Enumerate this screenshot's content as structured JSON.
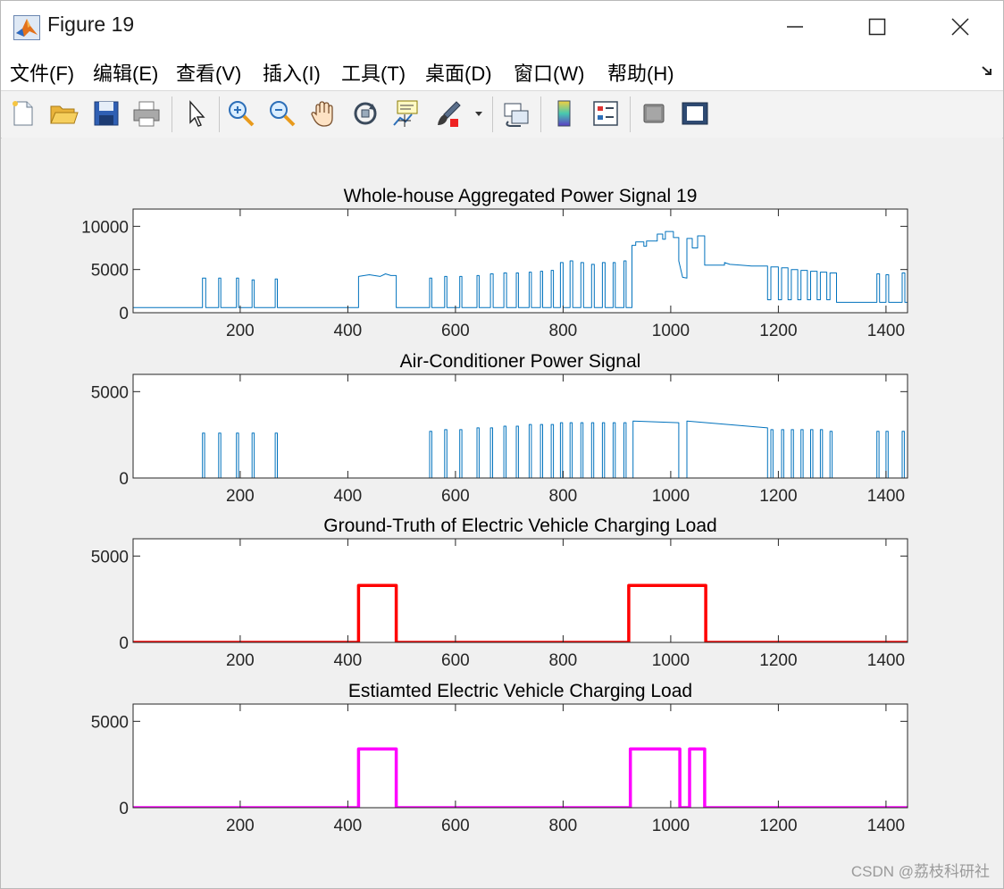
{
  "window": {
    "title": "Figure 19"
  },
  "menu": [
    {
      "label": "文件(F)",
      "x": 10
    },
    {
      "label": "编辑(E)",
      "x": 103
    },
    {
      "label": "查看(V)",
      "x": 196
    },
    {
      "label": "插入(I)",
      "x": 293
    },
    {
      "label": "工具(T)",
      "x": 381
    },
    {
      "label": "桌面(D)",
      "x": 475
    },
    {
      "label": "窗口(W)",
      "x": 574
    },
    {
      "label": "帮助(H)",
      "x": 679
    }
  ],
  "toolbar": {
    "tools": [
      "new-file-icon",
      "open-file-icon",
      "save-icon",
      "print-icon",
      "pointer-icon",
      "zoom-in-icon",
      "zoom-out-icon",
      "pan-hand-icon",
      "rotate-3d-icon",
      "data-cursor-icon",
      "brush-icon",
      "brush-dropdown-icon",
      "link-plot-icon",
      "colorbar-icon",
      "legend-icon",
      "hide-plot-tools-icon",
      "show-plot-tools-icon"
    ]
  },
  "watermark": "CSDN @荔枝科研社",
  "colors": {
    "blue": "#0072BD",
    "red": "#FF0000",
    "magenta": "#FF00FF"
  },
  "chart_data": [
    {
      "type": "line",
      "title": "Whole-house Aggregated Power Signal 19",
      "xlim": [
        1,
        1440
      ],
      "ylim": [
        0,
        12000
      ],
      "xticks": [
        200,
        400,
        600,
        800,
        1000,
        1200,
        1400
      ],
      "yticks": [
        0,
        5000,
        10000
      ],
      "color": "#0072BD",
      "linewidth": 1,
      "segments": [
        [
          1,
          600
        ],
        [
          130,
          600
        ],
        [
          130,
          4000
        ],
        [
          136,
          4000
        ],
        [
          136,
          600
        ],
        [
          160,
          600
        ],
        [
          160,
          4000
        ],
        [
          164,
          4000
        ],
        [
          164,
          600
        ],
        [
          193,
          600
        ],
        [
          193,
          4000
        ],
        [
          197,
          4000
        ],
        [
          197,
          600
        ],
        [
          222,
          600
        ],
        [
          222,
          3800
        ],
        [
          226,
          3800
        ],
        [
          226,
          600
        ],
        [
          265,
          600
        ],
        [
          265,
          3900
        ],
        [
          269,
          3900
        ],
        [
          269,
          600
        ],
        [
          420,
          600
        ],
        [
          420,
          4200
        ],
        [
          440,
          4400
        ],
        [
          460,
          4200
        ],
        [
          470,
          4500
        ],
        [
          480,
          4300
        ],
        [
          490,
          4300
        ],
        [
          490,
          600
        ],
        [
          552,
          600
        ],
        [
          552,
          4000
        ],
        [
          556,
          4000
        ],
        [
          556,
          600
        ],
        [
          580,
          600
        ],
        [
          580,
          4200
        ],
        [
          584,
          4200
        ],
        [
          584,
          600
        ],
        [
          608,
          600
        ],
        [
          608,
          4200
        ],
        [
          612,
          4200
        ],
        [
          612,
          600
        ],
        [
          640,
          600
        ],
        [
          640,
          4300
        ],
        [
          644,
          4300
        ],
        [
          644,
          600
        ],
        [
          665,
          600
        ],
        [
          665,
          4500
        ],
        [
          670,
          4500
        ],
        [
          670,
          600
        ],
        [
          690,
          600
        ],
        [
          690,
          4600
        ],
        [
          695,
          4600
        ],
        [
          695,
          600
        ],
        [
          713,
          600
        ],
        [
          713,
          4600
        ],
        [
          717,
          4600
        ],
        [
          717,
          600
        ],
        [
          737,
          600
        ],
        [
          737,
          4700
        ],
        [
          741,
          4700
        ],
        [
          741,
          600
        ],
        [
          758,
          600
        ],
        [
          758,
          4800
        ],
        [
          762,
          4800
        ],
        [
          762,
          600
        ],
        [
          778,
          600
        ],
        [
          778,
          4900
        ],
        [
          782,
          4900
        ],
        [
          782,
          600
        ],
        [
          795,
          600
        ],
        [
          795,
          5800
        ],
        [
          800,
          5800
        ],
        [
          800,
          600
        ],
        [
          813,
          600
        ],
        [
          813,
          6000
        ],
        [
          818,
          6000
        ],
        [
          818,
          600
        ],
        [
          833,
          600
        ],
        [
          833,
          5800
        ],
        [
          838,
          5800
        ],
        [
          838,
          600
        ],
        [
          853,
          600
        ],
        [
          853,
          5600
        ],
        [
          858,
          5600
        ],
        [
          858,
          600
        ],
        [
          873,
          600
        ],
        [
          873,
          5800
        ],
        [
          878,
          5800
        ],
        [
          878,
          600
        ],
        [
          893,
          600
        ],
        [
          893,
          5800
        ],
        [
          897,
          5800
        ],
        [
          897,
          600
        ],
        [
          913,
          600
        ],
        [
          913,
          6000
        ],
        [
          917,
          6000
        ],
        [
          917,
          600
        ],
        [
          928,
          600
        ],
        [
          928,
          7800
        ],
        [
          935,
          7800
        ],
        [
          935,
          8200
        ],
        [
          950,
          8200
        ],
        [
          950,
          7700
        ],
        [
          955,
          7700
        ],
        [
          955,
          8300
        ],
        [
          975,
          8300
        ],
        [
          975,
          9100
        ],
        [
          985,
          9100
        ],
        [
          985,
          8500
        ],
        [
          990,
          8500
        ],
        [
          990,
          9400
        ],
        [
          1005,
          9400
        ],
        [
          1005,
          8700
        ],
        [
          1015,
          8700
        ],
        [
          1015,
          6000
        ],
        [
          1022,
          4100
        ],
        [
          1030,
          4000
        ],
        [
          1030,
          8600
        ],
        [
          1040,
          8600
        ],
        [
          1040,
          7500
        ],
        [
          1050,
          7500
        ],
        [
          1050,
          8900
        ],
        [
          1063,
          8900
        ],
        [
          1063,
          5500
        ],
        [
          1100,
          5500
        ],
        [
          1100,
          5800
        ],
        [
          1110,
          5600
        ],
        [
          1130,
          5500
        ],
        [
          1150,
          5400
        ],
        [
          1180,
          5400
        ],
        [
          1180,
          1500
        ],
        [
          1186,
          1500
        ],
        [
          1186,
          5300
        ],
        [
          1200,
          5300
        ],
        [
          1200,
          1500
        ],
        [
          1206,
          1500
        ],
        [
          1206,
          5200
        ],
        [
          1218,
          5200
        ],
        [
          1218,
          1500
        ],
        [
          1224,
          1500
        ],
        [
          1224,
          5000
        ],
        [
          1236,
          5000
        ],
        [
          1236,
          1500
        ],
        [
          1242,
          1500
        ],
        [
          1242,
          4900
        ],
        [
          1254,
          4900
        ],
        [
          1254,
          1500
        ],
        [
          1260,
          1500
        ],
        [
          1260,
          4800
        ],
        [
          1272,
          4800
        ],
        [
          1272,
          1500
        ],
        [
          1278,
          1500
        ],
        [
          1278,
          4700
        ],
        [
          1290,
          4700
        ],
        [
          1290,
          1500
        ],
        [
          1296,
          1500
        ],
        [
          1296,
          4600
        ],
        [
          1308,
          4600
        ],
        [
          1308,
          1200
        ],
        [
          1383,
          1200
        ],
        [
          1383,
          4500
        ],
        [
          1388,
          4500
        ],
        [
          1388,
          1200
        ],
        [
          1400,
          1200
        ],
        [
          1400,
          4400
        ],
        [
          1405,
          4400
        ],
        [
          1405,
          1200
        ],
        [
          1430,
          1200
        ],
        [
          1430,
          4600
        ],
        [
          1435,
          4600
        ],
        [
          1435,
          1200
        ],
        [
          1440,
          1200
        ]
      ]
    },
    {
      "type": "line",
      "title": "Air-Conditioner Power Signal",
      "xlim": [
        1,
        1440
      ],
      "ylim": [
        0,
        6000
      ],
      "xticks": [
        200,
        400,
        600,
        800,
        1000,
        1200,
        1400
      ],
      "yticks": [
        0,
        5000
      ],
      "color": "#0072BD",
      "linewidth": 1,
      "pulses": [
        [
          130,
          2600
        ],
        [
          160,
          2600
        ],
        [
          193,
          2600
        ],
        [
          222,
          2600
        ],
        [
          265,
          2600
        ],
        [
          552,
          2700
        ],
        [
          580,
          2800
        ],
        [
          608,
          2800
        ],
        [
          640,
          2900
        ],
        [
          665,
          2900
        ],
        [
          690,
          3000
        ],
        [
          713,
          3000
        ],
        [
          737,
          3100
        ],
        [
          758,
          3100
        ],
        [
          778,
          3100
        ],
        [
          795,
          3200
        ],
        [
          813,
          3200
        ],
        [
          833,
          3200
        ],
        [
          853,
          3200
        ],
        [
          873,
          3200
        ],
        [
          893,
          3200
        ],
        [
          913,
          3200
        ],
        [
          1186,
          2800
        ],
        [
          1206,
          2800
        ],
        [
          1224,
          2800
        ],
        [
          1242,
          2800
        ],
        [
          1260,
          2800
        ],
        [
          1278,
          2800
        ],
        [
          1296,
          2700
        ],
        [
          1383,
          2700
        ],
        [
          1400,
          2700
        ],
        [
          1430,
          2700
        ]
      ],
      "blocks": [
        [
          930,
          1015,
          3300,
          3200
        ],
        [
          1030,
          1180,
          3300,
          2900
        ]
      ]
    },
    {
      "type": "line",
      "title": "Ground-Truth of Electric Vehicle Charging Load",
      "xlim": [
        1,
        1440
      ],
      "ylim": [
        0,
        6000
      ],
      "xticks": [
        200,
        400,
        600,
        800,
        1000,
        1200,
        1400
      ],
      "yticks": [
        0,
        5000
      ],
      "color": "#FF0000",
      "linewidth": 3.5,
      "segments": [
        [
          1,
          0
        ],
        [
          420,
          0
        ],
        [
          420,
          3300
        ],
        [
          490,
          3300
        ],
        [
          490,
          0
        ],
        [
          922,
          0
        ],
        [
          922,
          3300
        ],
        [
          1065,
          3300
        ],
        [
          1065,
          0
        ],
        [
          1440,
          0
        ]
      ]
    },
    {
      "type": "line",
      "title": "Estiamted Electric Vehicle Charging Load",
      "xlim": [
        1,
        1440
      ],
      "ylim": [
        0,
        6000
      ],
      "xticks": [
        200,
        400,
        600,
        800,
        1000,
        1200,
        1400
      ],
      "yticks": [
        0,
        5000
      ],
      "color": "#FF00FF",
      "linewidth": 3.5,
      "segments": [
        [
          1,
          0
        ],
        [
          420,
          0
        ],
        [
          420,
          3400
        ],
        [
          490,
          3400
        ],
        [
          490,
          0
        ],
        [
          925,
          0
        ],
        [
          925,
          3400
        ],
        [
          1017,
          3400
        ],
        [
          1017,
          0
        ],
        [
          1035,
          0
        ],
        [
          1035,
          3400
        ],
        [
          1063,
          3400
        ],
        [
          1063,
          0
        ],
        [
          1440,
          0
        ]
      ]
    }
  ]
}
